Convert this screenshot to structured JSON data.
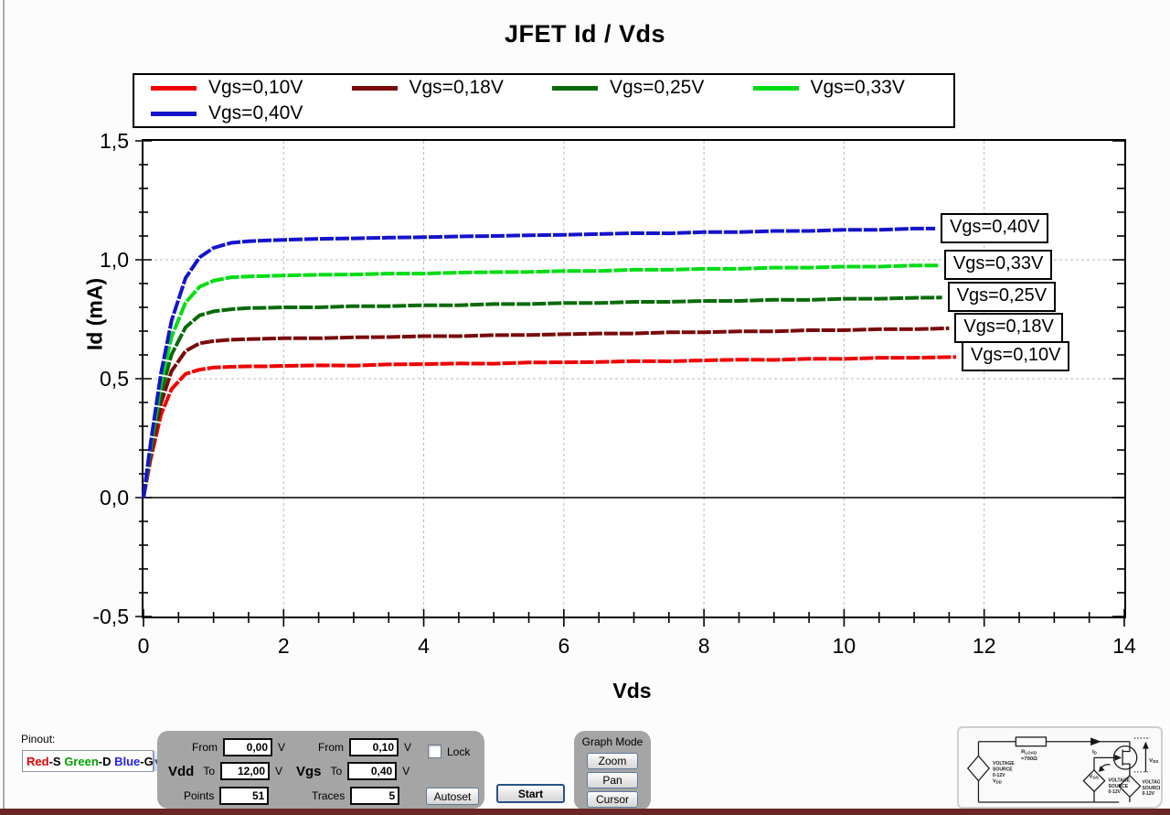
{
  "window": {
    "bottom_bar_color": "#6d2626"
  },
  "chart_data": {
    "type": "line",
    "title": "JFET Id / Vds",
    "xlabel": "Vds",
    "ylabel": "Id (mA)",
    "xlim": [
      0,
      14
    ],
    "ylim": [
      -0.5,
      1.5
    ],
    "x_major": [
      0,
      2,
      4,
      6,
      8,
      10,
      12,
      14
    ],
    "x_tick_labels": [
      "0",
      "2",
      "4",
      "6",
      "8",
      "10",
      "12",
      "14"
    ],
    "x_minor_step": 0.5,
    "y_major": [
      1.5,
      1.0,
      0.5,
      0.0,
      -0.5
    ],
    "y_tick_labels": [
      "1,5",
      "1,0",
      "0,5",
      "0,0",
      "-0,5"
    ],
    "y_minor_step": 0.1,
    "grid": "dashed gray at major ticks, solid black line at Id=0",
    "legend_position": "top",
    "series": [
      {
        "name": "Vgs=0,10V",
        "color": "#f00000",
        "points": [
          [
            0,
            0
          ],
          [
            0.1,
            0.16
          ],
          [
            0.25,
            0.35
          ],
          [
            0.4,
            0.456
          ],
          [
            0.6,
            0.52
          ],
          [
            0.8,
            0.538
          ],
          [
            1,
            0.547
          ],
          [
            1.25,
            0.55
          ],
          [
            1.5,
            0.552
          ],
          [
            1.75,
            0.552
          ],
          [
            2,
            0.554
          ],
          [
            2.5,
            0.556
          ],
          [
            3,
            0.555
          ],
          [
            3.5,
            0.56
          ],
          [
            4,
            0.561
          ],
          [
            4.5,
            0.564
          ],
          [
            5,
            0.563
          ],
          [
            5.5,
            0.568
          ],
          [
            6,
            0.569
          ],
          [
            6.5,
            0.57
          ],
          [
            7,
            0.574
          ],
          [
            7.5,
            0.573
          ],
          [
            8,
            0.577
          ],
          [
            8.5,
            0.58
          ],
          [
            9,
            0.579
          ],
          [
            9.5,
            0.584
          ],
          [
            10,
            0.583
          ],
          [
            10.5,
            0.588
          ],
          [
            11,
            0.588
          ],
          [
            11.6,
            0.591
          ]
        ]
      },
      {
        "name": "Vgs=0,18V",
        "color": "#7a0a0a",
        "points": [
          [
            0,
            0
          ],
          [
            0.1,
            0.18
          ],
          [
            0.25,
            0.398
          ],
          [
            0.4,
            0.532
          ],
          [
            0.6,
            0.616
          ],
          [
            0.8,
            0.649
          ],
          [
            1,
            0.658
          ],
          [
            1.25,
            0.664
          ],
          [
            1.5,
            0.666
          ],
          [
            1.75,
            0.668
          ],
          [
            2,
            0.67
          ],
          [
            2.5,
            0.67
          ],
          [
            3,
            0.674
          ],
          [
            3.5,
            0.675
          ],
          [
            4,
            0.679
          ],
          [
            4.5,
            0.679
          ],
          [
            5,
            0.683
          ],
          [
            5.5,
            0.684
          ],
          [
            6,
            0.687
          ],
          [
            6.5,
            0.69
          ],
          [
            7,
            0.69
          ],
          [
            7.5,
            0.695
          ],
          [
            8,
            0.695
          ],
          [
            8.5,
            0.699
          ],
          [
            9,
            0.699
          ],
          [
            9.5,
            0.704
          ],
          [
            10,
            0.704
          ],
          [
            10.5,
            0.708
          ],
          [
            11,
            0.708
          ],
          [
            11.5,
            0.712
          ]
        ]
      },
      {
        "name": "Vgs=0,25V",
        "color": "#0a6a0a",
        "points": [
          [
            0,
            0
          ],
          [
            0.1,
            0.195
          ],
          [
            0.25,
            0.44
          ],
          [
            0.4,
            0.602
          ],
          [
            0.6,
            0.716
          ],
          [
            0.8,
            0.766
          ],
          [
            1,
            0.783
          ],
          [
            1.25,
            0.792
          ],
          [
            1.5,
            0.797
          ],
          [
            1.75,
            0.798
          ],
          [
            2,
            0.8
          ],
          [
            2.5,
            0.8
          ],
          [
            3,
            0.805
          ],
          [
            3.5,
            0.805
          ],
          [
            4,
            0.809
          ],
          [
            4.5,
            0.809
          ],
          [
            5,
            0.814
          ],
          [
            5.5,
            0.814
          ],
          [
            6,
            0.818
          ],
          [
            6.5,
            0.818
          ],
          [
            7,
            0.823
          ],
          [
            7.5,
            0.823
          ],
          [
            8,
            0.827
          ],
          [
            8.5,
            0.827
          ],
          [
            9,
            0.832
          ],
          [
            9.5,
            0.831
          ],
          [
            10,
            0.836
          ],
          [
            10.5,
            0.836
          ],
          [
            11,
            0.84
          ],
          [
            11.4,
            0.841
          ]
        ]
      },
      {
        "name": "Vgs=0,33V",
        "color": "#00dc14",
        "points": [
          [
            0,
            0
          ],
          [
            0.1,
            0.212
          ],
          [
            0.25,
            0.484
          ],
          [
            0.4,
            0.676
          ],
          [
            0.6,
            0.82
          ],
          [
            0.8,
            0.886
          ],
          [
            1,
            0.912
          ],
          [
            1.25,
            0.926
          ],
          [
            1.5,
            0.93
          ],
          [
            1.75,
            0.932
          ],
          [
            2,
            0.934
          ],
          [
            2.5,
            0.937
          ],
          [
            3,
            0.938
          ],
          [
            3.5,
            0.942
          ],
          [
            4,
            0.942
          ],
          [
            4.5,
            0.946
          ],
          [
            5,
            0.948
          ],
          [
            5.5,
            0.949
          ],
          [
            6,
            0.953
          ],
          [
            6.5,
            0.953
          ],
          [
            7,
            0.958
          ],
          [
            7.5,
            0.958
          ],
          [
            8,
            0.962
          ],
          [
            8.5,
            0.962
          ],
          [
            9,
            0.967
          ],
          [
            9.5,
            0.967
          ],
          [
            10,
            0.971
          ],
          [
            10.5,
            0.971
          ],
          [
            11,
            0.976
          ],
          [
            11.35,
            0.976
          ]
        ]
      },
      {
        "name": "Vgs=0,40V",
        "color": "#1414cc",
        "points": [
          [
            0,
            0
          ],
          [
            0.1,
            0.226
          ],
          [
            0.25,
            0.524
          ],
          [
            0.4,
            0.744
          ],
          [
            0.6,
            0.923
          ],
          [
            0.8,
            1.01
          ],
          [
            1,
            1.05
          ],
          [
            1.25,
            1.071
          ],
          [
            1.5,
            1.078
          ],
          [
            1.75,
            1.081
          ],
          [
            2,
            1.084
          ],
          [
            2.5,
            1.088
          ],
          [
            3,
            1.09
          ],
          [
            3.5,
            1.093
          ],
          [
            4,
            1.095
          ],
          [
            4.5,
            1.098
          ],
          [
            5,
            1.1
          ],
          [
            5.5,
            1.103
          ],
          [
            6,
            1.105
          ],
          [
            6.5,
            1.108
          ],
          [
            7,
            1.112
          ],
          [
            7.5,
            1.111
          ],
          [
            8,
            1.116
          ],
          [
            8.5,
            1.116
          ],
          [
            9,
            1.121
          ],
          [
            9.5,
            1.121
          ],
          [
            10,
            1.126
          ],
          [
            10.5,
            1.126
          ],
          [
            11,
            1.131
          ],
          [
            11.3,
            1.131
          ]
        ]
      }
    ],
    "curve_end_labels": [
      "Vgs=0,40V",
      "Vgs=0,33V",
      "Vgs=0,25V",
      "Vgs=0,18V",
      "Vgs=0,10V"
    ]
  },
  "controls": {
    "pinout": {
      "label": "Pinout:",
      "segments": [
        {
          "text": "Red",
          "color": "#e00000"
        },
        {
          "text": "-S ",
          "color": "#000000"
        },
        {
          "text": "Green",
          "color": "#00a000"
        },
        {
          "text": "-D ",
          "color": "#000000"
        },
        {
          "text": "Blue",
          "color": "#2222ee"
        },
        {
          "text": "-G",
          "color": "#000000"
        }
      ]
    },
    "sweep": {
      "vdd_label": "Vdd",
      "vgs_label": "Vgs",
      "from_label": "From",
      "to_label": "To",
      "unit": "V",
      "vdd_from": "0,00",
      "vdd_to": "12,00",
      "points_label": "Points",
      "points": "51",
      "vgs_from": "0,10",
      "vgs_to": "0,40",
      "traces_label": "Traces",
      "traces": "5",
      "lock_label": "Lock",
      "autoset_label": "Autoset"
    },
    "start_label": "Start",
    "graph_mode": {
      "title": "Graph Mode",
      "zoom": "Zoom",
      "pan": "Pan",
      "cursor": "Cursor"
    }
  },
  "circuit": {
    "v1": "VOLTAGE",
    "v2": "SOURCE",
    "v3": "0-12V",
    "vdd_main": "V",
    "vdd_sub": "DD",
    "r_main": "R",
    "r_sub": "LOAD",
    "r_value": "≈700Ω",
    "id_main": "I",
    "id_sub": "D",
    "vds_main": "V",
    "vds_sub": "DS",
    "vgs_main": "V",
    "vgs_sub": "GS"
  }
}
